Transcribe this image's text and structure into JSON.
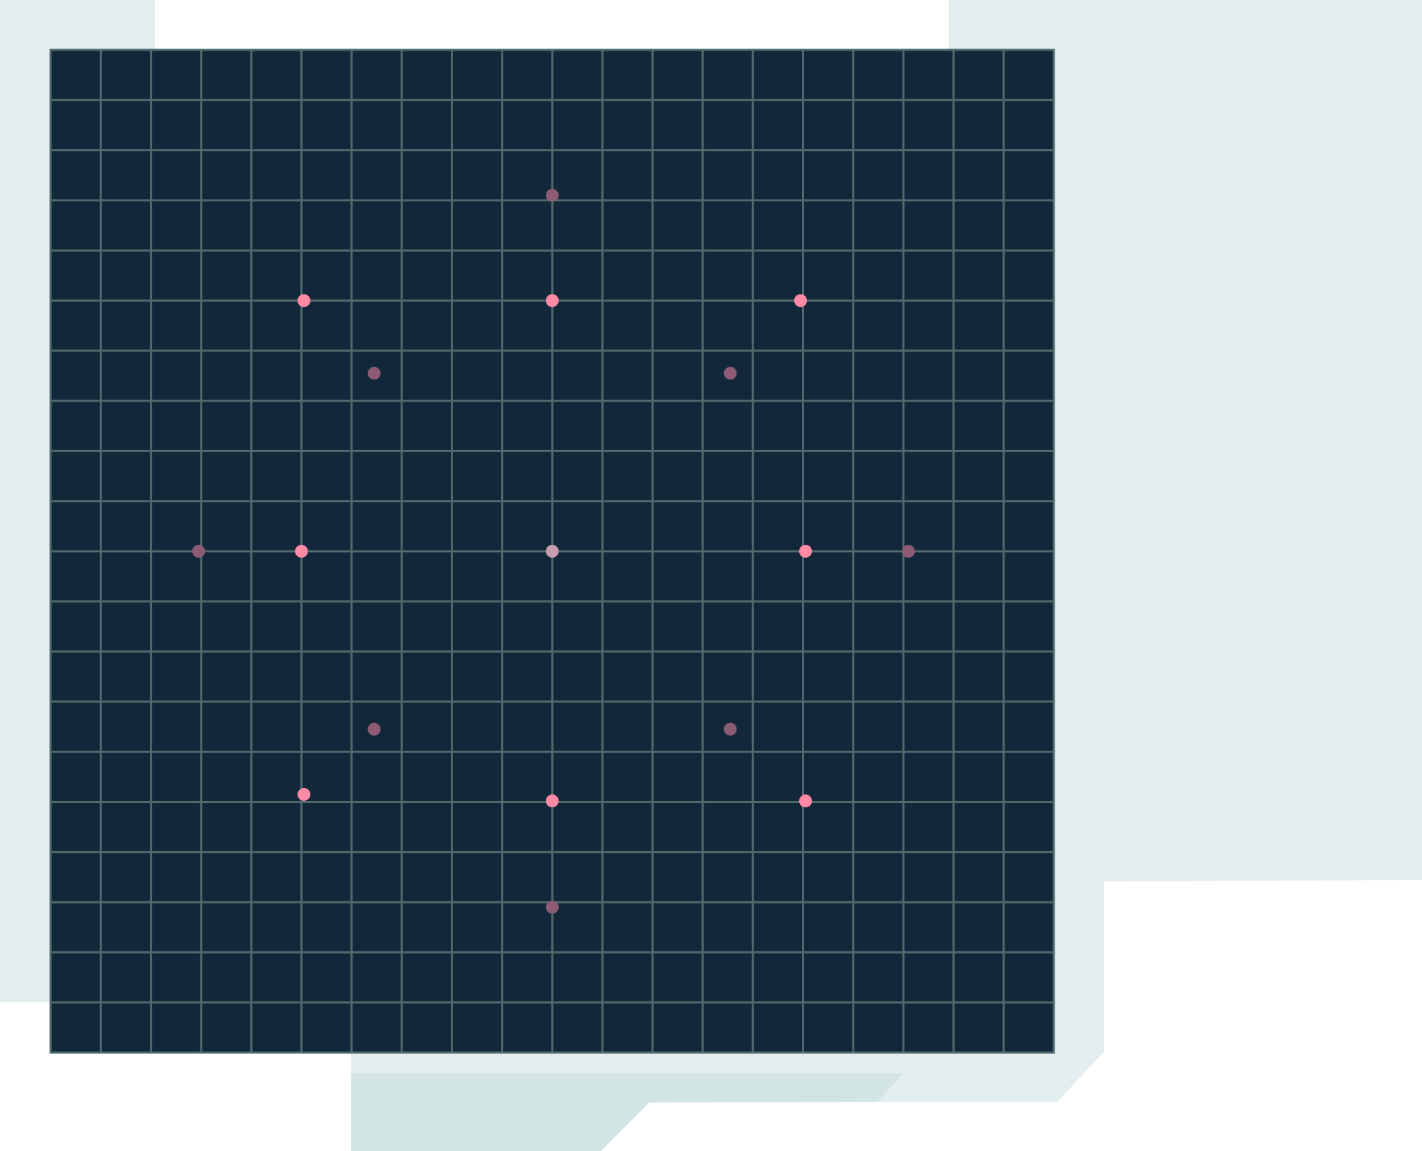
{
  "colors": {
    "board": "#12283a",
    "grid": "#4e6a6c",
    "panel": "#e4eeef",
    "accent_panel": "#d2e4e4",
    "dot_bright": "#ff8aa6",
    "dot_dim": "#8d5c74",
    "dot_center": "#c69eae"
  },
  "board": {
    "cells": 20
  },
  "dots": [
    {
      "name": "dot-top-outer",
      "col": 10,
      "row": 2.9,
      "state": "dim"
    },
    {
      "name": "dot-upper-left",
      "col": 5.05,
      "row": 5,
      "state": "bright"
    },
    {
      "name": "dot-upper-center",
      "col": 10,
      "row": 5,
      "state": "bright"
    },
    {
      "name": "dot-upper-right",
      "col": 14.95,
      "row": 5,
      "state": "bright"
    },
    {
      "name": "dot-inner-upper-left",
      "col": 6.45,
      "row": 6.45,
      "state": "dim"
    },
    {
      "name": "dot-inner-upper-right",
      "col": 13.55,
      "row": 6.45,
      "state": "dim"
    },
    {
      "name": "dot-left-outer",
      "col": 2.95,
      "row": 10,
      "state": "dim"
    },
    {
      "name": "dot-middle-left",
      "col": 5,
      "row": 10,
      "state": "bright"
    },
    {
      "name": "dot-center",
      "col": 10,
      "row": 10,
      "state": "center"
    },
    {
      "name": "dot-middle-right",
      "col": 15.05,
      "row": 10,
      "state": "bright"
    },
    {
      "name": "dot-right-outer",
      "col": 17.1,
      "row": 10,
      "state": "dim"
    },
    {
      "name": "dot-inner-lower-left",
      "col": 6.45,
      "row": 13.55,
      "state": "dim"
    },
    {
      "name": "dot-inner-lower-right",
      "col": 13.55,
      "row": 13.55,
      "state": "dim"
    },
    {
      "name": "dot-lower-left",
      "col": 5.05,
      "row": 14.85,
      "state": "bright"
    },
    {
      "name": "dot-lower-center",
      "col": 10,
      "row": 14.98,
      "state": "bright"
    },
    {
      "name": "dot-lower-right",
      "col": 15.05,
      "row": 14.98,
      "state": "bright"
    },
    {
      "name": "dot-bottom-outer",
      "col": 10,
      "row": 17.1,
      "state": "dim"
    }
  ]
}
